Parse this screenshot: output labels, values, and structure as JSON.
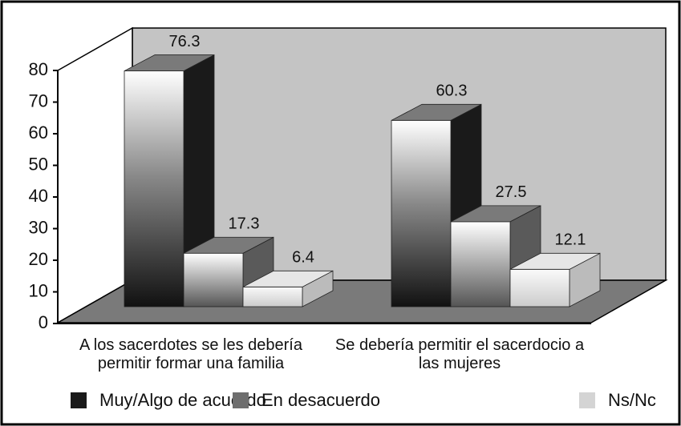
{
  "chart_data": {
    "type": "bar3d",
    "categories": [
      "A los sacerdotes se les debería permitir formar una familia",
      "Se debería permitir el sacerdocio a las mujeres"
    ],
    "series": [
      {
        "name": "Muy/Algo de acuerdo",
        "color": "#1a1a1a",
        "values": [
          76.3,
          60.3
        ]
      },
      {
        "name": "En desacuerdo",
        "color": "#6e6e6e",
        "values": [
          17.3,
          27.5
        ]
      },
      {
        "name": "Ns/Nc",
        "color": "#d4d4d4",
        "values": [
          6.4,
          12.1
        ]
      }
    ],
    "ylim": [
      0,
      80
    ],
    "yticks": [
      0,
      10,
      20,
      30,
      40,
      50,
      60,
      70,
      80
    ]
  }
}
